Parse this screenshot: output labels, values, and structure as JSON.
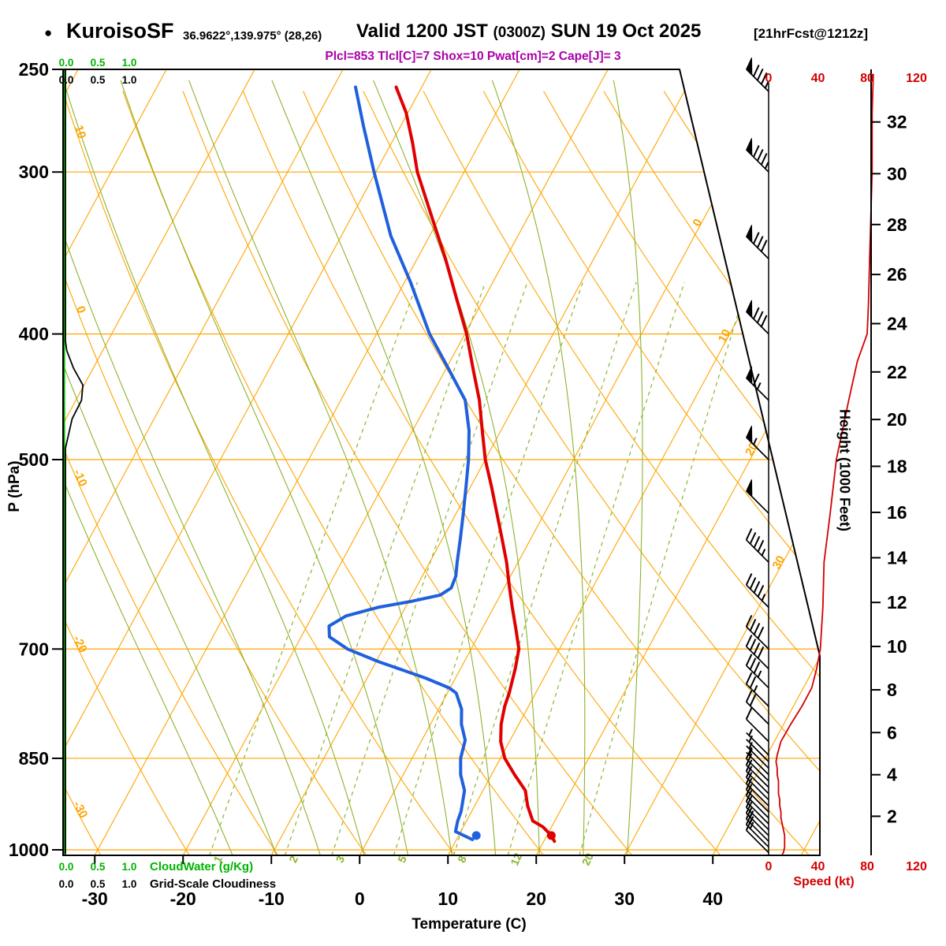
{
  "header": {
    "bullet": "●",
    "station": "KuroisoSF",
    "coords": "36.9622°,139.975° (28,26)",
    "valid_prefix": "Valid 1200 JST ",
    "valid_zulu": "(0300Z)",
    "valid_date": " SUN 19 Oct 2025",
    "fcst": "[21hrFcst@1212z]",
    "params": "Plcl=853 Tlcl[C]=7 Shox=10 Pwat[cm]=2 Cape[J]= 3"
  },
  "axes": {
    "pressure_label": "P (hPa)",
    "temperature_label": "Temperature (C)",
    "height_label": "Height (1000 Feet)",
    "speed_label": "Speed (kt)",
    "cloudwater_label": "CloudWater (g/Kg)",
    "cloudiness_label": "Grid-Scale Cloudiness",
    "cloud_scale_ticks": [
      "0.0",
      "0.5",
      "1.0"
    ]
  },
  "chart_data": {
    "type": "skewt-log-p sounding",
    "pressure_ticks_hpa": [
      250,
      300,
      400,
      500,
      700,
      850,
      1000
    ],
    "pressure_grid_hpa": [
      300,
      400,
      500,
      700,
      850,
      1000
    ],
    "temperature_ticks_c": [
      -30,
      -20,
      -10,
      0,
      10,
      20,
      30,
      40
    ],
    "height_ticks_kft": [
      2,
      4,
      6,
      8,
      10,
      12,
      14,
      16,
      18,
      20,
      22,
      24,
      26,
      28,
      30,
      32
    ],
    "speed_ticks_kt": [
      0,
      40,
      80,
      120
    ],
    "isotherm_labels_right_c": [
      0,
      10,
      20,
      30
    ],
    "dry_adiabat_labels_left_c": [
      10,
      0,
      -10,
      -20,
      -30
    ],
    "mixing_ratio_lines_gkg": [
      1,
      2,
      3,
      5,
      8,
      12,
      20
    ],
    "temperature_profile_p_c": [
      [
        985,
        21.2
      ],
      [
        975,
        20.5
      ],
      [
        960,
        19.0
      ],
      [
        950,
        17.5
      ],
      [
        925,
        16.0
      ],
      [
        900,
        14.8
      ],
      [
        875,
        12.6
      ],
      [
        850,
        10.5
      ],
      [
        825,
        9.0
      ],
      [
        800,
        8.0
      ],
      [
        775,
        7.3
      ],
      [
        757,
        7.0
      ],
      [
        725,
        6.2
      ],
      [
        700,
        5.4
      ],
      [
        675,
        3.8
      ],
      [
        650,
        2.1
      ],
      [
        625,
        0.4
      ],
      [
        600,
        -1.3
      ],
      [
        575,
        -3.3
      ],
      [
        550,
        -5.4
      ],
      [
        525,
        -7.6
      ],
      [
        500,
        -10.0
      ],
      [
        475,
        -12.1
      ],
      [
        450,
        -14.3
      ],
      [
        425,
        -17.0
      ],
      [
        400,
        -19.8
      ],
      [
        375,
        -23.2
      ],
      [
        350,
        -26.8
      ],
      [
        325,
        -30.9
      ],
      [
        300,
        -35.3
      ],
      [
        285,
        -37.6
      ],
      [
        270,
        -40.2
      ],
      [
        258,
        -42.9
      ]
    ],
    "dewpoint_profile_p_c": [
      [
        982,
        11.8
      ],
      [
        968,
        9.4
      ],
      [
        950,
        9.0
      ],
      [
        934,
        8.8
      ],
      [
        915,
        8.3
      ],
      [
        900,
        7.9
      ],
      [
        875,
        6.5
      ],
      [
        850,
        5.5
      ],
      [
        823,
        4.9
      ],
      [
        800,
        3.5
      ],
      [
        779,
        2.6
      ],
      [
        757,
        1.0
      ],
      [
        750,
        -0.1
      ],
      [
        737,
        -3.4
      ],
      [
        716,
        -9.7
      ],
      [
        700,
        -14.0
      ],
      [
        685,
        -16.8
      ],
      [
        672,
        -17.5
      ],
      [
        660,
        -16.2
      ],
      [
        650,
        -13.1
      ],
      [
        643,
        -9.6
      ],
      [
        636,
        -6.8
      ],
      [
        628,
        -6.0
      ],
      [
        615,
        -6.2
      ],
      [
        600,
        -6.9
      ],
      [
        575,
        -8.0
      ],
      [
        550,
        -9.2
      ],
      [
        525,
        -10.5
      ],
      [
        500,
        -11.9
      ],
      [
        475,
        -13.6
      ],
      [
        450,
        -15.9
      ],
      [
        425,
        -19.8
      ],
      [
        400,
        -24.0
      ],
      [
        365,
        -29.3
      ],
      [
        336,
        -34.4
      ],
      [
        300,
        -40.2
      ],
      [
        276,
        -44.3
      ],
      [
        258,
        -47.5
      ]
    ],
    "surface_markers": {
      "p": 975,
      "t": 20.5,
      "td": 12.0
    },
    "wind_dir_deg": 315,
    "wind_barbs_p_kt": [
      [
        1005,
        12
      ],
      [
        995,
        13
      ],
      [
        985,
        13
      ],
      [
        975,
        13
      ],
      [
        965,
        12
      ],
      [
        955,
        11
      ],
      [
        945,
        10
      ],
      [
        935,
        10
      ],
      [
        925,
        9
      ],
      [
        915,
        9
      ],
      [
        905,
        8
      ],
      [
        895,
        8
      ],
      [
        885,
        8
      ],
      [
        875,
        7
      ],
      [
        865,
        7
      ],
      [
        855,
        6
      ],
      [
        845,
        7
      ],
      [
        825,
        10
      ],
      [
        800,
        18
      ],
      [
        775,
        27
      ],
      [
        750,
        35
      ],
      [
        725,
        39
      ],
      [
        700,
        42
      ],
      [
        650,
        44
      ],
      [
        600,
        45
      ],
      [
        550,
        50
      ],
      [
        500,
        55
      ],
      [
        450,
        65
      ],
      [
        400,
        80
      ],
      [
        350,
        82
      ],
      [
        300,
        84
      ],
      [
        260,
        85
      ]
    ],
    "speed_profile_p_kt": [
      [
        1008,
        11
      ],
      [
        1005,
        12
      ],
      [
        995,
        13
      ],
      [
        985,
        13
      ],
      [
        975,
        13
      ],
      [
        965,
        12
      ],
      [
        955,
        11
      ],
      [
        945,
        10
      ],
      [
        935,
        10
      ],
      [
        925,
        9
      ],
      [
        915,
        9
      ],
      [
        905,
        8
      ],
      [
        895,
        8
      ],
      [
        885,
        8
      ],
      [
        875,
        7
      ],
      [
        865,
        7
      ],
      [
        855,
        6
      ],
      [
        845,
        7
      ],
      [
        825,
        10
      ],
      [
        800,
        18
      ],
      [
        775,
        27
      ],
      [
        750,
        35
      ],
      [
        725,
        39
      ],
      [
        700,
        42
      ],
      [
        650,
        44
      ],
      [
        600,
        45
      ],
      [
        550,
        50
      ],
      [
        500,
        55
      ],
      [
        450,
        65
      ],
      [
        420,
        72
      ],
      [
        400,
        80
      ],
      [
        380,
        81
      ],
      [
        350,
        82
      ],
      [
        300,
        84
      ],
      [
        270,
        84
      ],
      [
        252,
        85
      ]
    ],
    "cloudiness_profile_p_frac": [
      [
        1008,
        0
      ],
      [
        490,
        0
      ],
      [
        465,
        0.1
      ],
      [
        450,
        0.24
      ],
      [
        438,
        0.26
      ],
      [
        425,
        0.12
      ],
      [
        412,
        0.02
      ],
      [
        405,
        0
      ],
      [
        250,
        0
      ]
    ],
    "cloudwater_profile_p_gkg": [
      [
        1008,
        0
      ],
      [
        250,
        0
      ]
    ],
    "colors": {
      "temperature": "#E00000",
      "dewpoint": "#2060DD",
      "grid_orange": "#FFA500",
      "grid_green": "#8CB32E",
      "cloudwater_green": "#00B400",
      "speed_red": "#D40000",
      "params_magenta": "#AA00AA",
      "wind_black": "#000000"
    }
  }
}
